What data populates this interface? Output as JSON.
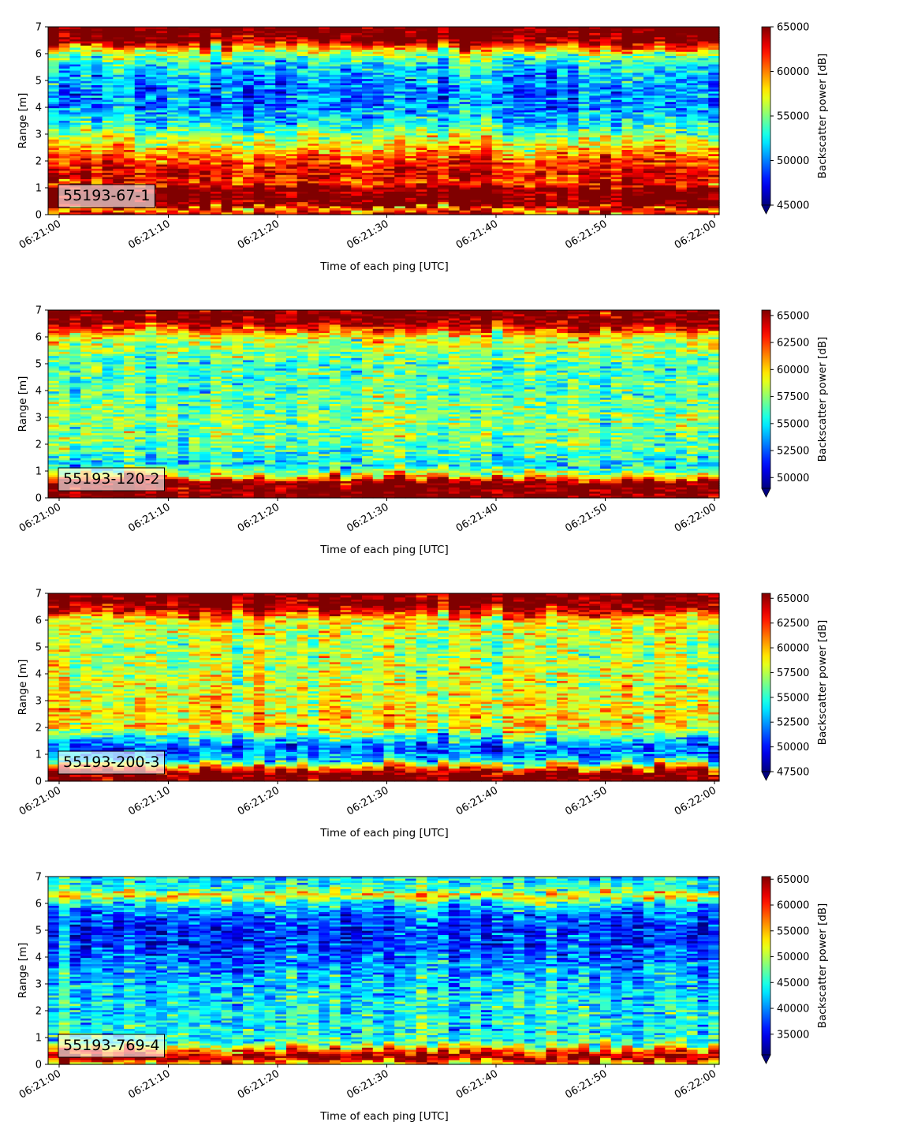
{
  "chart_data": [
    {
      "type": "heatmap",
      "label": "55193-67-1",
      "xlabel": "Time of each ping [UTC]",
      "ylabel": "Range [m]",
      "x_ticks": [
        "06:21:00",
        "06:21:10",
        "06:21:20",
        "06:21:30",
        "06:21:40",
        "06:21:50",
        "06:22:00"
      ],
      "ylim": [
        0,
        7
      ],
      "y_ticks": [
        0,
        1,
        2,
        3,
        4,
        5,
        6,
        7
      ],
      "colorbar": {
        "label": "Backscatter power [dB]",
        "min": 45000,
        "max": 65000,
        "ticks": [
          45000,
          50000,
          55000,
          60000,
          65000
        ],
        "colormap": "jet",
        "extend": "min"
      },
      "profile": [
        {
          "range": 0.0,
          "value": 64500
        },
        {
          "range": 0.2,
          "value": 58000
        },
        {
          "range": 0.3,
          "value": 66000
        },
        {
          "range": 1.0,
          "value": 66000
        },
        {
          "range": 1.1,
          "value": 61500
        },
        {
          "range": 1.5,
          "value": 63500
        },
        {
          "range": 2.0,
          "value": 61500
        },
        {
          "range": 2.7,
          "value": 57000
        },
        {
          "range": 3.3,
          "value": 53000
        },
        {
          "range": 4.0,
          "value": 50500
        },
        {
          "range": 4.5,
          "value": 50000
        },
        {
          "range": 5.0,
          "value": 51000
        },
        {
          "range": 5.5,
          "value": 52000
        },
        {
          "range": 6.0,
          "value": 56000
        },
        {
          "range": 6.3,
          "value": 62000
        },
        {
          "range": 6.5,
          "value": 66000
        },
        {
          "range": 7.0,
          "value": 66000
        }
      ]
    },
    {
      "type": "heatmap",
      "label": "55193-120-2",
      "xlabel": "Time of each ping [UTC]",
      "ylabel": "Range [m]",
      "x_ticks": [
        "06:21:00",
        "06:21:10",
        "06:21:20",
        "06:21:30",
        "06:21:40",
        "06:21:50",
        "06:22:00"
      ],
      "ylim": [
        0,
        7
      ],
      "y_ticks": [
        0,
        1,
        2,
        3,
        4,
        5,
        6,
        7
      ],
      "colorbar": {
        "label": "Backscatter power [dB]",
        "min": 49000,
        "max": 65500,
        "ticks": [
          50000,
          52500,
          55000,
          57500,
          60000,
          62500,
          65000
        ],
        "colormap": "jet",
        "extend": "min"
      },
      "profile": [
        {
          "range": 0.0,
          "value": 66000
        },
        {
          "range": 0.6,
          "value": 66000
        },
        {
          "range": 0.8,
          "value": 60000
        },
        {
          "range": 1.2,
          "value": 55000
        },
        {
          "range": 2.0,
          "value": 57000
        },
        {
          "range": 3.0,
          "value": 57500
        },
        {
          "range": 4.0,
          "value": 56500
        },
        {
          "range": 5.0,
          "value": 56500
        },
        {
          "range": 6.0,
          "value": 59000
        },
        {
          "range": 6.4,
          "value": 64000
        },
        {
          "range": 6.6,
          "value": 66000
        },
        {
          "range": 7.0,
          "value": 66000
        }
      ]
    },
    {
      "type": "heatmap",
      "label": "55193-200-3",
      "xlabel": "Time of each ping [UTC]",
      "ylabel": "Range [m]",
      "x_ticks": [
        "06:21:00",
        "06:21:10",
        "06:21:20",
        "06:21:30",
        "06:21:40",
        "06:21:50",
        "06:22:00"
      ],
      "ylim": [
        0,
        7
      ],
      "y_ticks": [
        0,
        1,
        2,
        3,
        4,
        5,
        6,
        7
      ],
      "colorbar": {
        "label": "Backscatter power [dB]",
        "min": 47500,
        "max": 65500,
        "ticks": [
          47500,
          50000,
          52500,
          55000,
          57500,
          60000,
          62500,
          65000
        ],
        "colormap": "jet",
        "extend": "min"
      },
      "profile": [
        {
          "range": 0.0,
          "value": 66000
        },
        {
          "range": 0.3,
          "value": 66000
        },
        {
          "range": 0.5,
          "value": 61000
        },
        {
          "range": 0.8,
          "value": 53000
        },
        {
          "range": 1.3,
          "value": 51000
        },
        {
          "range": 2.0,
          "value": 59000
        },
        {
          "range": 3.0,
          "value": 58500
        },
        {
          "range": 4.0,
          "value": 57500
        },
        {
          "range": 5.0,
          "value": 57000
        },
        {
          "range": 6.0,
          "value": 58500
        },
        {
          "range": 6.3,
          "value": 63000
        },
        {
          "range": 6.6,
          "value": 66000
        },
        {
          "range": 7.0,
          "value": 66000
        }
      ]
    },
    {
      "type": "heatmap",
      "label": "55193-769-4",
      "xlabel": "Time of each ping [UTC]",
      "ylabel": "Range [m]",
      "x_ticks": [
        "06:21:00",
        "06:21:10",
        "06:21:20",
        "06:21:30",
        "06:21:40",
        "06:21:50",
        "06:22:00"
      ],
      "ylim": [
        0,
        7
      ],
      "y_ticks": [
        0,
        1,
        2,
        3,
        4,
        5,
        6,
        7
      ],
      "colorbar": {
        "label": "Backscatter power [dB]",
        "min": 31000,
        "max": 65500,
        "ticks": [
          35000,
          40000,
          45000,
          50000,
          55000,
          60000,
          65000
        ],
        "colormap": "jet",
        "extend": "min"
      },
      "profile": [
        {
          "range": 0.0,
          "value": 52000
        },
        {
          "range": 0.2,
          "value": 66000
        },
        {
          "range": 0.5,
          "value": 60000
        },
        {
          "range": 0.8,
          "value": 46000
        },
        {
          "range": 1.5,
          "value": 44500
        },
        {
          "range": 2.5,
          "value": 44000
        },
        {
          "range": 3.5,
          "value": 41500
        },
        {
          "range": 4.5,
          "value": 37500
        },
        {
          "range": 5.0,
          "value": 37000
        },
        {
          "range": 5.5,
          "value": 38500
        },
        {
          "range": 6.0,
          "value": 44000
        },
        {
          "range": 6.3,
          "value": 55000
        },
        {
          "range": 6.5,
          "value": 47000
        },
        {
          "range": 7.0,
          "value": 43000
        }
      ]
    }
  ]
}
